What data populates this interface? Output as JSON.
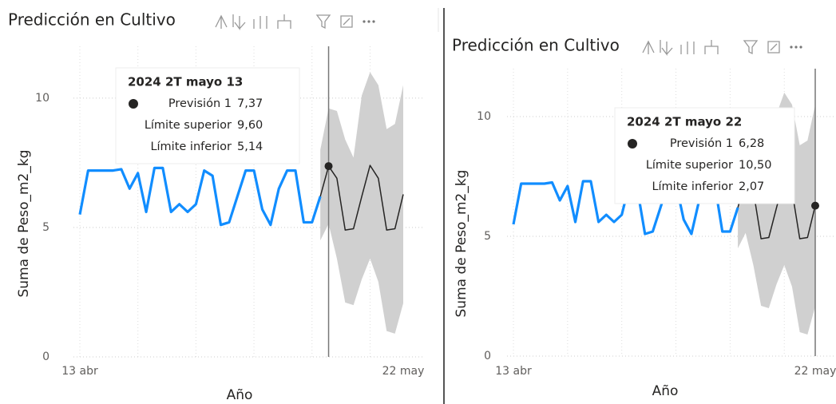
{
  "chart_data": [
    {
      "type": "line",
      "title": "Predicción en Cultivo",
      "x_label": "Año",
      "y_label": "Suma de Peso_m2_kg",
      "categories": [
        "13 abr",
        null,
        null,
        null,
        null,
        null,
        null,
        null,
        null,
        null,
        null,
        null,
        null,
        null,
        null,
        null,
        null,
        null,
        null,
        null,
        null,
        null,
        null,
        null,
        null,
        null,
        null,
        null,
        null,
        null,
        null,
        null,
        null,
        null,
        null,
        null,
        null,
        null,
        null,
        "22 may"
      ],
      "ylim": [
        0,
        12
      ],
      "yticks": [
        0,
        5,
        10
      ],
      "grid": true,
      "tooltip_title": "2024 2T mayo 13",
      "series": [
        {
          "color": "#118DFF",
          "values": [
            5.5,
            7.2,
            7.2,
            7.2,
            7.2,
            7.25,
            6.5,
            7.1,
            5.6,
            7.3,
            7.3,
            5.6,
            5.9,
            5.6,
            5.9,
            7.2,
            7.0,
            5.1,
            5.2,
            6.2,
            7.2,
            7.2,
            5.7,
            5.1,
            6.5,
            7.2,
            7.2,
            5.2,
            5.2,
            6.2,
            null,
            null,
            null,
            null,
            null,
            null,
            null,
            null,
            null,
            null
          ]
        },
        {
          "name": "Previsión 1",
          "color": "#252423",
          "values": [
            null,
            null,
            null,
            null,
            null,
            null,
            null,
            null,
            null,
            null,
            null,
            null,
            null,
            null,
            null,
            null,
            null,
            null,
            null,
            null,
            null,
            null,
            null,
            null,
            null,
            null,
            null,
            null,
            null,
            6.2,
            7.37,
            6.9,
            4.9,
            4.95,
            6.2,
            7.4,
            6.9,
            4.9,
            4.95,
            6.28
          ],
          "value_labels": [
            null,
            null,
            null,
            null,
            null,
            null,
            null,
            null,
            null,
            null,
            null,
            null,
            null,
            null,
            null,
            null,
            null,
            null,
            null,
            null,
            null,
            null,
            null,
            null,
            null,
            null,
            null,
            null,
            null,
            null,
            "7,37",
            null,
            null,
            null,
            null,
            null,
            null,
            null,
            null,
            null
          ]
        },
        {
          "name": "Límite superior",
          "color": "#d0d0d0",
          "values": [
            null,
            null,
            null,
            null,
            null,
            null,
            null,
            null,
            null,
            null,
            null,
            null,
            null,
            null,
            null,
            null,
            null,
            null,
            null,
            null,
            null,
            null,
            null,
            null,
            null,
            null,
            null,
            null,
            null,
            8.0,
            9.6,
            9.5,
            8.4,
            7.7,
            10.1,
            11.0,
            10.5,
            8.8,
            9.0,
            10.5
          ],
          "value_labels": [
            null,
            null,
            null,
            null,
            null,
            null,
            null,
            null,
            null,
            null,
            null,
            null,
            null,
            null,
            null,
            null,
            null,
            null,
            null,
            null,
            null,
            null,
            null,
            null,
            null,
            null,
            null,
            null,
            null,
            null,
            "9,60",
            null,
            null,
            null,
            null,
            null,
            null,
            null,
            null,
            null
          ]
        },
        {
          "name": "Límite inferior",
          "color": "#d0d0d0",
          "values": [
            null,
            null,
            null,
            null,
            null,
            null,
            null,
            null,
            null,
            null,
            null,
            null,
            null,
            null,
            null,
            null,
            null,
            null,
            null,
            null,
            null,
            null,
            null,
            null,
            null,
            null,
            null,
            null,
            null,
            4.5,
            5.14,
            3.8,
            2.1,
            2.0,
            3.0,
            3.8,
            2.9,
            1.0,
            0.9,
            2.07
          ],
          "value_labels": [
            null,
            null,
            null,
            null,
            null,
            null,
            null,
            null,
            null,
            null,
            null,
            null,
            null,
            null,
            null,
            null,
            null,
            null,
            null,
            null,
            null,
            null,
            null,
            null,
            null,
            null,
            null,
            null,
            null,
            null,
            "5,14",
            null,
            null,
            null,
            null,
            null,
            null,
            null,
            null,
            null
          ]
        }
      ]
    },
    {
      "type": "line",
      "title": "Predicción en Cultivo",
      "x_label": "Año",
      "y_label": "Suma de Peso_m2_kg",
      "categories": [
        "13 abr",
        null,
        null,
        null,
        null,
        null,
        null,
        null,
        null,
        null,
        null,
        null,
        null,
        null,
        null,
        null,
        null,
        null,
        null,
        null,
        null,
        null,
        null,
        null,
        null,
        null,
        null,
        null,
        null,
        null,
        null,
        null,
        null,
        null,
        null,
        null,
        null,
        null,
        null,
        "22 may"
      ],
      "ylim": [
        0,
        12
      ],
      "yticks": [
        0,
        5,
        10
      ],
      "grid": true,
      "tooltip_title": "2024 2T mayo 22",
      "series": [
        {
          "color": "#118DFF",
          "values": [
            5.5,
            7.2,
            7.2,
            7.2,
            7.2,
            7.25,
            6.5,
            7.1,
            5.6,
            7.3,
            7.3,
            5.6,
            5.9,
            5.6,
            5.9,
            7.2,
            7.0,
            5.1,
            5.2,
            6.2,
            7.2,
            7.2,
            5.7,
            5.1,
            6.5,
            7.2,
            7.2,
            5.2,
            5.2,
            6.2,
            null,
            null,
            null,
            null,
            null,
            null,
            null,
            null,
            null,
            null
          ]
        },
        {
          "name": "Previsión 1",
          "color": "#252423",
          "values": [
            null,
            null,
            null,
            null,
            null,
            null,
            null,
            null,
            null,
            null,
            null,
            null,
            null,
            null,
            null,
            null,
            null,
            null,
            null,
            null,
            null,
            null,
            null,
            null,
            null,
            null,
            null,
            null,
            null,
            6.2,
            7.37,
            6.9,
            4.9,
            4.95,
            6.2,
            7.4,
            6.9,
            4.9,
            4.95,
            6.28
          ],
          "value_labels": [
            null,
            null,
            null,
            null,
            null,
            null,
            null,
            null,
            null,
            null,
            null,
            null,
            null,
            null,
            null,
            null,
            null,
            null,
            null,
            null,
            null,
            null,
            null,
            null,
            null,
            null,
            null,
            null,
            null,
            null,
            null,
            null,
            null,
            null,
            null,
            null,
            null,
            null,
            null,
            "6,28"
          ]
        },
        {
          "name": "Límite superior",
          "color": "#d0d0d0",
          "values": [
            null,
            null,
            null,
            null,
            null,
            null,
            null,
            null,
            null,
            null,
            null,
            null,
            null,
            null,
            null,
            null,
            null,
            null,
            null,
            null,
            null,
            null,
            null,
            null,
            null,
            null,
            null,
            null,
            null,
            8.0,
            9.6,
            9.5,
            8.4,
            7.7,
            10.1,
            11.0,
            10.5,
            8.8,
            9.0,
            10.5
          ],
          "value_labels": [
            null,
            null,
            null,
            null,
            null,
            null,
            null,
            null,
            null,
            null,
            null,
            null,
            null,
            null,
            null,
            null,
            null,
            null,
            null,
            null,
            null,
            null,
            null,
            null,
            null,
            null,
            null,
            null,
            null,
            null,
            null,
            null,
            null,
            null,
            null,
            null,
            null,
            null,
            null,
            "10,50"
          ]
        },
        {
          "name": "Límite inferior",
          "color": "#d0d0d0",
          "values": [
            null,
            null,
            null,
            null,
            null,
            null,
            null,
            null,
            null,
            null,
            null,
            null,
            null,
            null,
            null,
            null,
            null,
            null,
            null,
            null,
            null,
            null,
            null,
            null,
            null,
            null,
            null,
            null,
            null,
            4.5,
            5.14,
            3.8,
            2.1,
            2.0,
            3.0,
            3.8,
            2.9,
            1.0,
            0.9,
            2.07
          ],
          "value_labels": [
            null,
            null,
            null,
            null,
            null,
            null,
            null,
            null,
            null,
            null,
            null,
            null,
            null,
            null,
            null,
            null,
            null,
            null,
            null,
            null,
            null,
            null,
            null,
            null,
            null,
            null,
            null,
            null,
            null,
            null,
            null,
            null,
            null,
            null,
            null,
            null,
            null,
            null,
            null,
            "2,07"
          ]
        }
      ]
    }
  ]
}
